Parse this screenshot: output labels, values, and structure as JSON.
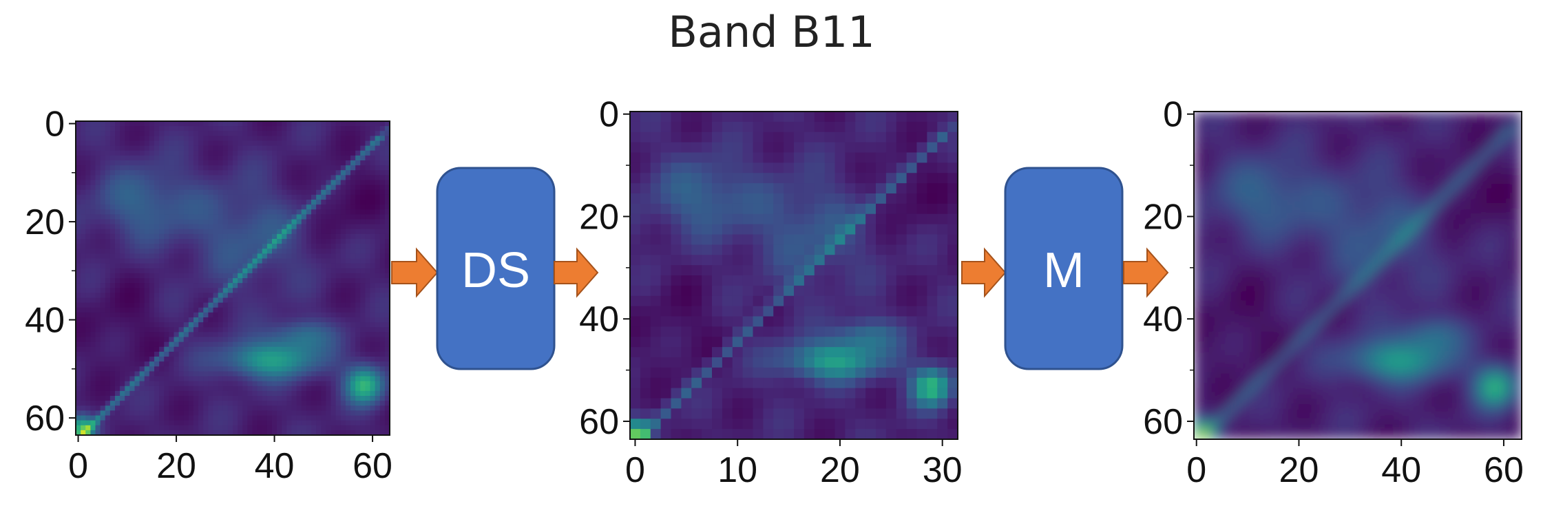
{
  "title": "Band B11",
  "colors": {
    "block": "#4472c4",
    "block_border": "#2f528f",
    "arrow": "#ed7d31",
    "arrow_border": "#a5521b",
    "viridis_low": "#440154",
    "viridis_mid": "#21918c",
    "viridis_high": "#fde725"
  },
  "blocks": [
    {
      "label": "DS"
    },
    {
      "label": "M"
    }
  ],
  "panels": [
    {
      "id": "input",
      "resolution": 64,
      "interpolation": "nearest",
      "y_ticks": [
        "0",
        "20",
        "40",
        "60"
      ],
      "x_ticks": [
        "0",
        "20",
        "40",
        "60"
      ]
    },
    {
      "id": "downsampled",
      "resolution": 32,
      "interpolation": "nearest",
      "y_ticks": [
        "0",
        "20",
        "40",
        "60"
      ],
      "x_ticks": [
        "0",
        "10",
        "20",
        "30"
      ]
    },
    {
      "id": "output",
      "resolution": 64,
      "interpolation": "smooth",
      "y_ticks": [
        "0",
        "20",
        "40",
        "60"
      ],
      "x_ticks": [
        "0",
        "20",
        "40",
        "60"
      ]
    }
  ]
}
